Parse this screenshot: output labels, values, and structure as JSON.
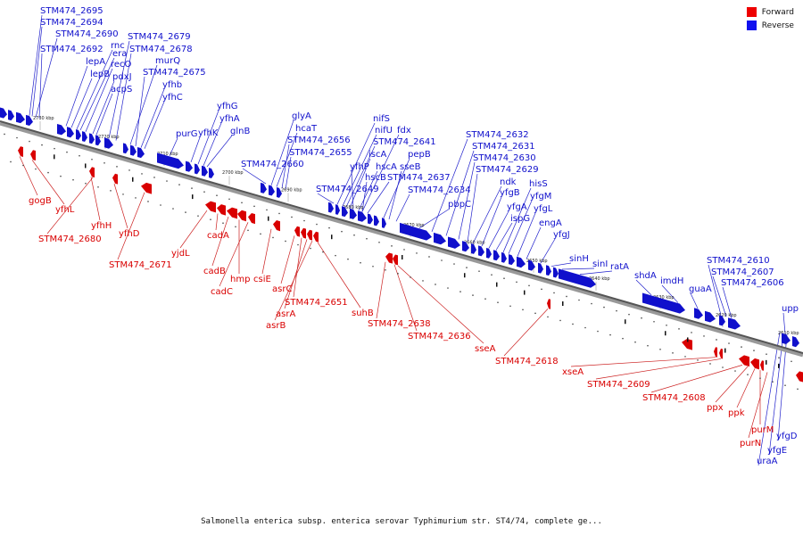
{
  "legend": {
    "forward_label": "Forward",
    "reverse_label": "Reverse",
    "forward_color": "#ee0000",
    "reverse_color": "#1111ee"
  },
  "caption": "Salmonella enterica subsp. enterica serovar Typhimurium str. ST4/74, complete ge...",
  "axis_ticks": [
    "2730 kbp",
    "2720 kbp",
    "2710 kbp",
    "2700 kbp",
    "2690 kbp",
    "2680 kbp",
    "2670 kbp",
    "2660 kbp",
    "2650 kbp",
    "2640 kbp",
    "2630 kbp",
    "2620 kbp",
    "2610 kbp"
  ],
  "reverse_labels": [
    "STM474_2695",
    "STM474_2694",
    "STM474_2690",
    "STM474_2692",
    "rnc",
    "era",
    "recO",
    "lepA",
    "lepB",
    "pdxJ",
    "acpS",
    "STM474_2679",
    "STM474_2678",
    "murQ",
    "STM474_2675",
    "yfhb",
    "yfhC",
    "purG",
    "yfhG",
    "yfhA",
    "yfhK",
    "glnB",
    "STM474_2660",
    "glyA",
    "hcaT",
    "STM474_2656",
    "STM474_2655",
    "nifS",
    "nifU",
    "fdx",
    "STM474_2641",
    "iscA",
    "pepB",
    "yfhP",
    "hscA",
    "sseB",
    "hscB",
    "STM474_2637",
    "STM474_2649",
    "STM474_2634",
    "STM474_2632",
    "STM474_2631",
    "STM474_2630",
    "STM474_2629",
    "ndk",
    "hisS",
    "yfgB",
    "yfgM",
    "yfgA",
    "yfgL",
    "ispG",
    "pbpC",
    "engA",
    "yfgJ",
    "sinH",
    "sinI",
    "ratA",
    "shdA",
    "imdH",
    "guaA",
    "STM474_2610",
    "STM474_2607",
    "STM474_2606",
    "upp",
    "uraA",
    "yfgE",
    "yfgD"
  ],
  "forward_labels": [
    "gogB",
    "yfhL",
    "yfhH",
    "STM474_2680",
    "yfhD",
    "STM474_2671",
    "yjdL",
    "cadA",
    "cadB",
    "hmp",
    "cadC",
    "csiE",
    "asrC",
    "STM474_2651",
    "asrA",
    "asrB",
    "suhB",
    "STM474_2638",
    "STM474_2636",
    "sseA",
    "STM474_2618",
    "xseA",
    "STM474_2609",
    "STM474_2608",
    "ppx",
    "ppk",
    "purM",
    "purN"
  ]
}
